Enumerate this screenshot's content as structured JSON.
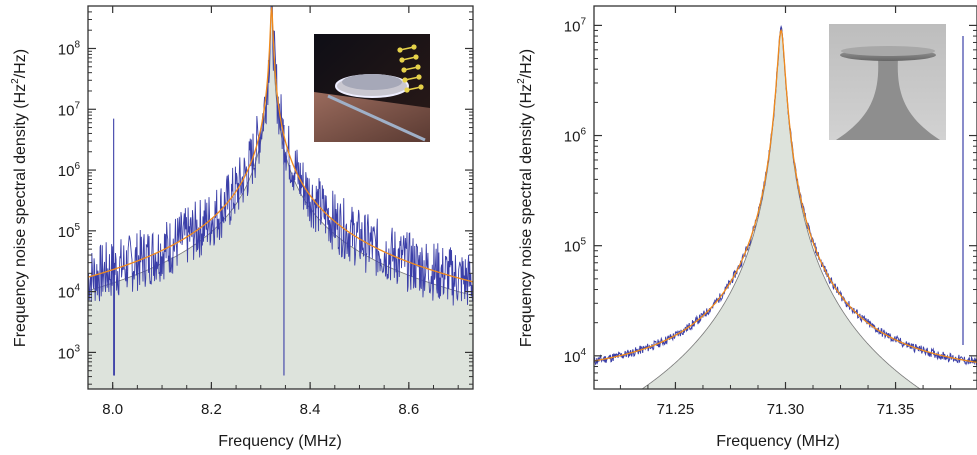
{
  "chart_data": [
    {
      "type": "line",
      "panel": "left",
      "xlabel": "Frequency (MHz)",
      "ylabel_main": "Frequency noise spectral density (Hz",
      "ylabel_sup": "2",
      "ylabel_end": "/Hz)",
      "xlim": [
        7.95,
        8.73
      ],
      "ylim": [
        250,
        500000000
      ],
      "y_scale": "log",
      "x_ticks": [
        8.0,
        8.2,
        8.4,
        8.6
      ],
      "x_tick_labels": [
        "8.0",
        "8.2",
        "8.4",
        "8.6"
      ],
      "y_tick_exponents": [
        "3",
        "4",
        "5",
        "6",
        "7",
        "8"
      ],
      "y_tick_base": "10",
      "center": 8.322,
      "peak_value": 560000000,
      "background": 520,
      "fit_peak": 480000000,
      "fit_width": 0.0022,
      "fill_peak": 560000000,
      "fill_width": 0.0016,
      "spurs": [
        {
          "x": 8.002,
          "y": 7000000
        },
        {
          "x": 8.0035,
          "y": 25000
        },
        {
          "x": 8.347,
          "y": 5500000
        }
      ],
      "inset": "ring resonator on waveguide illustration",
      "series": [
        {
          "role": "measured",
          "color": "#3b3fa8"
        },
        {
          "role": "fit",
          "color": "#f08a1c"
        },
        {
          "role": "thermal",
          "color": "#dde3dc"
        }
      ],
      "grid": false
    },
    {
      "type": "line",
      "panel": "right",
      "xlabel": "Frequency (MHz)",
      "ylabel_main": "Frequency noise spectral density (Hz",
      "ylabel_sup": "2",
      "ylabel_end": "/Hz)",
      "xlim": [
        71.213,
        71.387
      ],
      "ylim": [
        5000,
        15000000
      ],
      "y_scale": "log",
      "x_ticks": [
        71.25,
        71.3,
        71.35
      ],
      "x_tick_labels": [
        "71.25",
        "71.30",
        "71.35"
      ],
      "y_tick_exponents": [
        "4",
        "5",
        "6",
        "7"
      ],
      "y_tick_base": "10",
      "center": 71.298,
      "peak_value": 9500000,
      "background": 6000,
      "fit_peak": 9000000,
      "fit_width": 0.00155,
      "fill_peak": 9500000,
      "fill_width": 0.00145,
      "spurs": [],
      "inset": "microtoroid SEM image",
      "series": [
        {
          "role": "measured",
          "color": "#3b3fa8"
        },
        {
          "role": "fit",
          "color": "#f08a1c"
        },
        {
          "role": "thermal",
          "color": "#dde3dc"
        }
      ],
      "grid": false
    }
  ]
}
